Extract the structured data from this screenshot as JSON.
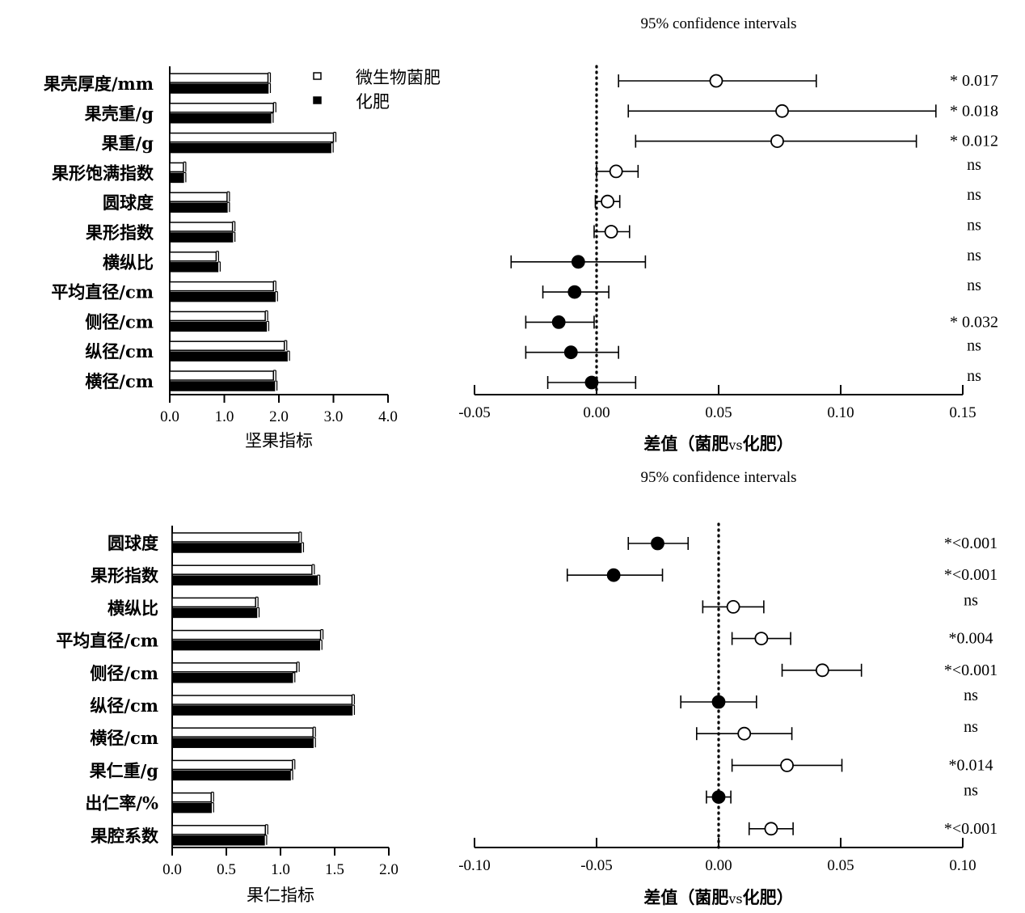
{
  "chart_data": [
    {
      "type": "bar",
      "panel": "top-left",
      "xlabel": "坚果指标",
      "categories": [
        "果壳厚度/mm",
        "果壳重/g",
        "果重/g",
        "果形饱满指数",
        "圆球度",
        "果形指数",
        "横纵比",
        "平均直径/cm",
        "侧径/cm",
        "纵径/cm",
        "横径/cm"
      ],
      "series": [
        {
          "name": "微生物菌肥",
          "fill": "#ffffff",
          "values": [
            1.8,
            1.9,
            3.0,
            0.25,
            1.05,
            1.15,
            0.85,
            1.9,
            1.75,
            2.1,
            1.9
          ]
        },
        {
          "name": "化肥",
          "fill": "#000000",
          "values": [
            1.8,
            1.85,
            2.95,
            0.25,
            1.05,
            1.15,
            0.88,
            1.93,
            1.77,
            2.15,
            1.92
          ]
        }
      ],
      "xlim": [
        0,
        4
      ],
      "xticks": [
        "0.0",
        "1.0",
        "2.0",
        "3.0",
        "4.0"
      ],
      "legend_position": "top-right"
    },
    {
      "type": "scatter",
      "panel": "top-right",
      "title": "95% confidence intervals",
      "xlabel_parts": [
        "差值（菌肥",
        "vs",
        "化肥）"
      ],
      "xlim": [
        -0.05,
        0.15
      ],
      "xticks": [
        "-0.05",
        "0.00",
        "0.05",
        "0.10",
        "0.15"
      ],
      "points": [
        {
          "est": 0.049,
          "lo": 0.009,
          "hi": 0.09,
          "filled": false,
          "sig": "* 0.017"
        },
        {
          "est": 0.076,
          "lo": 0.013,
          "hi": 0.139,
          "filled": false,
          "sig": "* 0.018"
        },
        {
          "est": 0.074,
          "lo": 0.016,
          "hi": 0.131,
          "filled": false,
          "sig": "* 0.012"
        },
        {
          "est": 0.008,
          "lo": 0.0,
          "hi": 0.017,
          "filled": false,
          "sig": "ns"
        },
        {
          "est": 0.0045,
          "lo": -0.0005,
          "hi": 0.0095,
          "filled": false,
          "sig": "ns"
        },
        {
          "est": 0.006,
          "lo": -0.001,
          "hi": 0.0135,
          "filled": false,
          "sig": "ns"
        },
        {
          "est": -0.0075,
          "lo": -0.035,
          "hi": 0.02,
          "filled": true,
          "sig": "ns"
        },
        {
          "est": -0.009,
          "lo": -0.022,
          "hi": 0.005,
          "filled": true,
          "sig": "ns"
        },
        {
          "est": -0.0155,
          "lo": -0.029,
          "hi": -0.001,
          "filled": true,
          "sig": "* 0.032"
        },
        {
          "est": -0.0105,
          "lo": -0.029,
          "hi": 0.009,
          "filled": true,
          "sig": "ns"
        },
        {
          "est": -0.002,
          "lo": -0.02,
          "hi": 0.016,
          "filled": true,
          "sig": "ns"
        }
      ]
    },
    {
      "type": "bar",
      "panel": "bottom-left",
      "xlabel": "果仁指标",
      "categories": [
        "圆球度",
        "果形指数",
        "横纵比",
        "平均直径/cm",
        "侧径/cm",
        "纵径/cm",
        "横径/cm",
        "果仁重/g",
        "出仁率/%",
        "果腔系数"
      ],
      "series": [
        {
          "name": "微生物菌肥",
          "fill": "#ffffff",
          "values": [
            1.17,
            1.29,
            0.77,
            1.37,
            1.15,
            1.66,
            1.3,
            1.11,
            0.36,
            0.86
          ]
        },
        {
          "name": "化肥",
          "fill": "#000000",
          "values": [
            1.19,
            1.34,
            0.78,
            1.36,
            1.11,
            1.66,
            1.3,
            1.09,
            0.36,
            0.85
          ]
        }
      ],
      "xlim": [
        0,
        2
      ],
      "xticks": [
        "0.0",
        "0.5",
        "1.0",
        "1.5",
        "2.0"
      ]
    },
    {
      "type": "scatter",
      "panel": "bottom-right",
      "title": "95% confidence intervals",
      "xlabel_parts": [
        "差值（菌肥",
        "vs",
        "化肥）"
      ],
      "xlim": [
        -0.1,
        0.1
      ],
      "xticks": [
        "-0.10",
        "-0.05",
        "0.00",
        "0.05",
        "0.10"
      ],
      "points": [
        {
          "est": -0.025,
          "lo": -0.037,
          "hi": -0.0125,
          "filled": true,
          "sig": "*<0.001"
        },
        {
          "est": -0.043,
          "lo": -0.062,
          "hi": -0.023,
          "filled": true,
          "sig": "*<0.001"
        },
        {
          "est": 0.006,
          "lo": -0.0065,
          "hi": 0.0185,
          "filled": false,
          "sig": "ns"
        },
        {
          "est": 0.0175,
          "lo": 0.0055,
          "hi": 0.0295,
          "filled": false,
          "sig": "*0.004"
        },
        {
          "est": 0.0425,
          "lo": 0.026,
          "hi": 0.0585,
          "filled": false,
          "sig": "*<0.001"
        },
        {
          "est": 0.0,
          "lo": -0.0155,
          "hi": 0.0155,
          "filled": true,
          "sig": "ns"
        },
        {
          "est": 0.0105,
          "lo": -0.009,
          "hi": 0.03,
          "filled": false,
          "sig": "ns"
        },
        {
          "est": 0.028,
          "lo": 0.0055,
          "hi": 0.0505,
          "filled": false,
          "sig": "*0.014"
        },
        {
          "est": 0.0,
          "lo": -0.005,
          "hi": 0.005,
          "filled": true,
          "sig": "ns"
        },
        {
          "est": 0.0215,
          "lo": 0.0125,
          "hi": 0.0305,
          "filled": false,
          "sig": "*<0.001"
        }
      ]
    }
  ]
}
